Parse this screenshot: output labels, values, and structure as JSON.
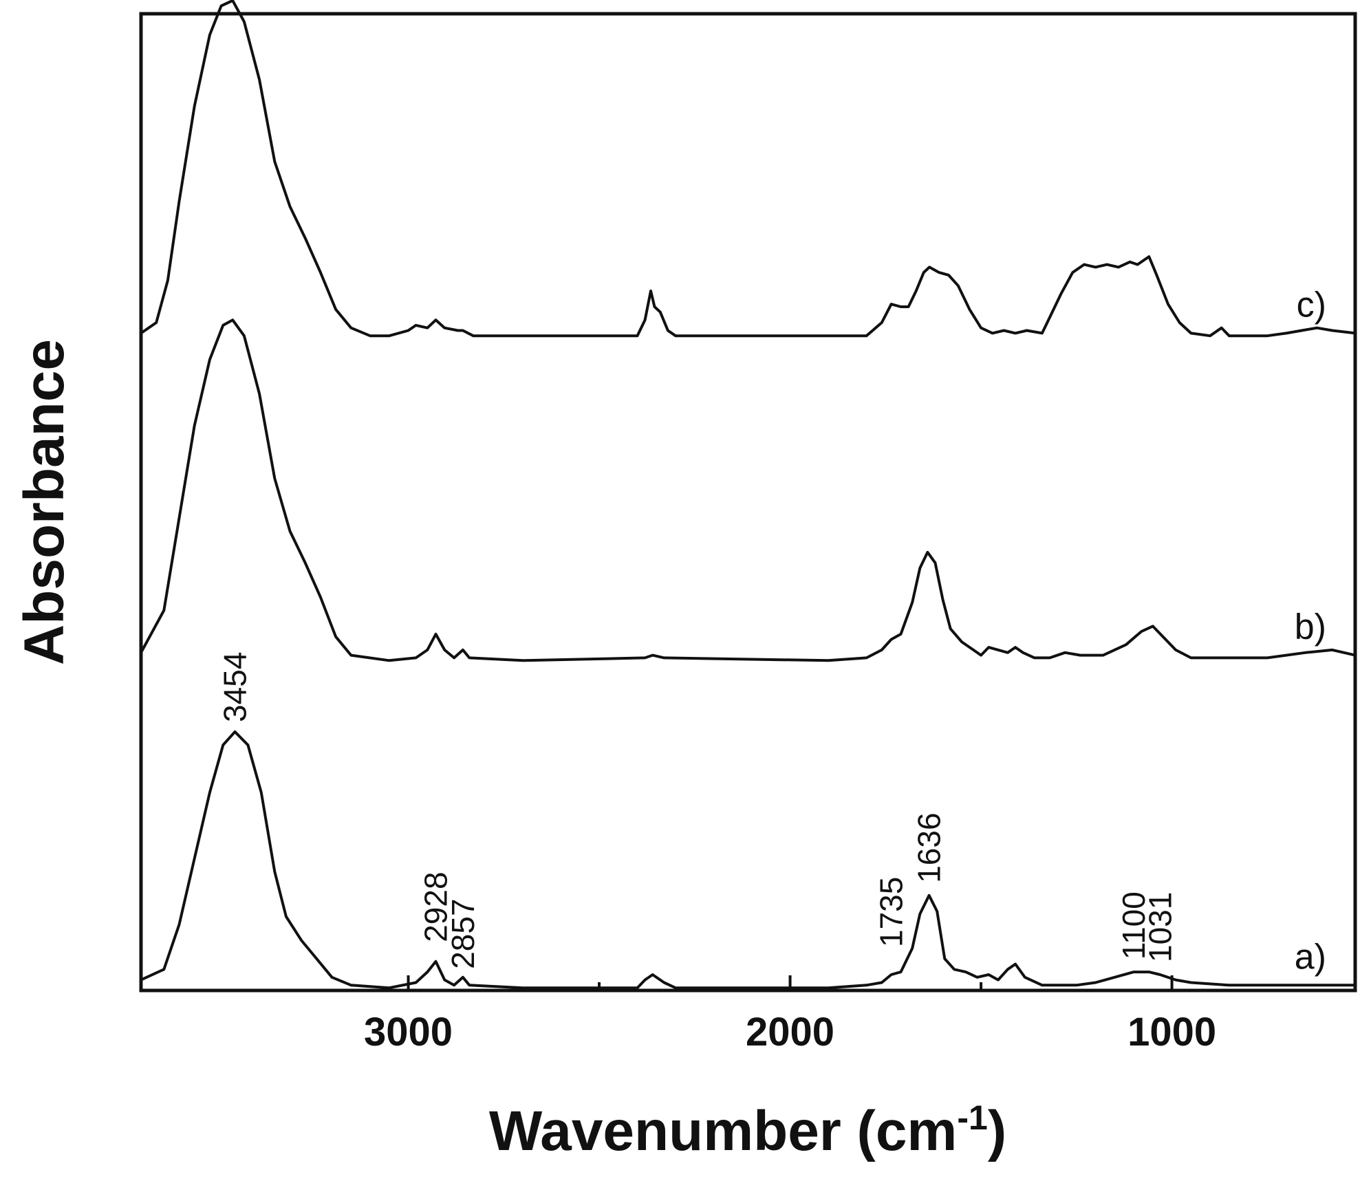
{
  "chart_data": {
    "type": "line",
    "title": "",
    "xlabel": "Wavenumber (cm",
    "xlabel_sup": "-1",
    "xlabel_end": ")",
    "ylabel": "Absorbance",
    "xlim": [
      3700,
      520
    ],
    "x_reversed": true,
    "ylim": [
      0,
      3.7
    ],
    "x_ticks": [
      3000,
      2000,
      1000
    ],
    "x_tick_labels": [
      "3000",
      "2000",
      "1000"
    ],
    "y_ticks_shown": false,
    "grid": false,
    "series": [
      {
        "name": "a)",
        "offset": 0.0,
        "points": [
          [
            3700,
            0.04
          ],
          [
            3640,
            0.08
          ],
          [
            3600,
            0.25
          ],
          [
            3560,
            0.5
          ],
          [
            3520,
            0.75
          ],
          [
            3485,
            0.93
          ],
          [
            3454,
            0.98
          ],
          [
            3420,
            0.93
          ],
          [
            3385,
            0.75
          ],
          [
            3350,
            0.45
          ],
          [
            3320,
            0.28
          ],
          [
            3280,
            0.19
          ],
          [
            3240,
            0.12
          ],
          [
            3200,
            0.05
          ],
          [
            3150,
            0.02
          ],
          [
            3050,
            0.01
          ],
          [
            2980,
            0.03
          ],
          [
            2950,
            0.07
          ],
          [
            2928,
            0.11
          ],
          [
            2905,
            0.04
          ],
          [
            2880,
            0.02
          ],
          [
            2857,
            0.05
          ],
          [
            2840,
            0.02
          ],
          [
            2700,
            0.01
          ],
          [
            2400,
            0.01
          ],
          [
            2380,
            0.04
          ],
          [
            2360,
            0.06
          ],
          [
            2330,
            0.03
          ],
          [
            2300,
            0.01
          ],
          [
            1900,
            0.01
          ],
          [
            1800,
            0.02
          ],
          [
            1760,
            0.03
          ],
          [
            1735,
            0.06
          ],
          [
            1710,
            0.07
          ],
          [
            1680,
            0.16
          ],
          [
            1660,
            0.29
          ],
          [
            1636,
            0.36
          ],
          [
            1615,
            0.3
          ],
          [
            1595,
            0.12
          ],
          [
            1570,
            0.08
          ],
          [
            1540,
            0.07
          ],
          [
            1510,
            0.05
          ],
          [
            1480,
            0.06
          ],
          [
            1455,
            0.04
          ],
          [
            1430,
            0.08
          ],
          [
            1410,
            0.1
          ],
          [
            1385,
            0.05
          ],
          [
            1340,
            0.02
          ],
          [
            1300,
            0.02
          ],
          [
            1250,
            0.02
          ],
          [
            1200,
            0.03
          ],
          [
            1150,
            0.05
          ],
          [
            1100,
            0.07
          ],
          [
            1060,
            0.07
          ],
          [
            1031,
            0.06
          ],
          [
            990,
            0.04
          ],
          [
            950,
            0.03
          ],
          [
            850,
            0.02
          ],
          [
            700,
            0.02
          ],
          [
            600,
            0.02
          ],
          [
            520,
            0.02
          ]
        ]
      },
      {
        "name": "b)",
        "offset": 1.24,
        "points": [
          [
            3700,
            0.04
          ],
          [
            3640,
            0.2
          ],
          [
            3600,
            0.55
          ],
          [
            3560,
            0.9
          ],
          [
            3520,
            1.15
          ],
          [
            3485,
            1.28
          ],
          [
            3460,
            1.3
          ],
          [
            3430,
            1.24
          ],
          [
            3390,
            1.02
          ],
          [
            3350,
            0.7
          ],
          [
            3310,
            0.5
          ],
          [
            3270,
            0.38
          ],
          [
            3230,
            0.25
          ],
          [
            3190,
            0.1
          ],
          [
            3150,
            0.03
          ],
          [
            3050,
            0.01
          ],
          [
            2980,
            0.02
          ],
          [
            2950,
            0.05
          ],
          [
            2928,
            0.11
          ],
          [
            2905,
            0.05
          ],
          [
            2880,
            0.02
          ],
          [
            2857,
            0.05
          ],
          [
            2840,
            0.02
          ],
          [
            2700,
            0.01
          ],
          [
            2380,
            0.02
          ],
          [
            2360,
            0.03
          ],
          [
            2330,
            0.02
          ],
          [
            1900,
            0.01
          ],
          [
            1800,
            0.02
          ],
          [
            1760,
            0.05
          ],
          [
            1735,
            0.09
          ],
          [
            1710,
            0.11
          ],
          [
            1680,
            0.23
          ],
          [
            1660,
            0.36
          ],
          [
            1640,
            0.42
          ],
          [
            1620,
            0.38
          ],
          [
            1600,
            0.24
          ],
          [
            1580,
            0.13
          ],
          [
            1550,
            0.08
          ],
          [
            1520,
            0.05
          ],
          [
            1500,
            0.03
          ],
          [
            1480,
            0.06
          ],
          [
            1455,
            0.05
          ],
          [
            1430,
            0.04
          ],
          [
            1410,
            0.06
          ],
          [
            1390,
            0.04
          ],
          [
            1360,
            0.02
          ],
          [
            1320,
            0.02
          ],
          [
            1280,
            0.04
          ],
          [
            1240,
            0.03
          ],
          [
            1180,
            0.03
          ],
          [
            1120,
            0.07
          ],
          [
            1080,
            0.12
          ],
          [
            1050,
            0.14
          ],
          [
            1030,
            0.11
          ],
          [
            990,
            0.05
          ],
          [
            950,
            0.02
          ],
          [
            850,
            0.02
          ],
          [
            750,
            0.02
          ],
          [
            650,
            0.04
          ],
          [
            580,
            0.05
          ],
          [
            520,
            0.03
          ]
        ]
      },
      {
        "name": "c)",
        "offset": 2.47,
        "points": [
          [
            3700,
            0.02
          ],
          [
            3660,
            0.06
          ],
          [
            3630,
            0.22
          ],
          [
            3600,
            0.52
          ],
          [
            3560,
            0.88
          ],
          [
            3520,
            1.15
          ],
          [
            3490,
            1.26
          ],
          [
            3460,
            1.28
          ],
          [
            3430,
            1.2
          ],
          [
            3390,
            0.98
          ],
          [
            3350,
            0.67
          ],
          [
            3310,
            0.5
          ],
          [
            3270,
            0.38
          ],
          [
            3230,
            0.25
          ],
          [
            3190,
            0.11
          ],
          [
            3150,
            0.04
          ],
          [
            3100,
            0.01
          ],
          [
            3050,
            0.01
          ],
          [
            3000,
            0.03
          ],
          [
            2980,
            0.05
          ],
          [
            2950,
            0.04
          ],
          [
            2928,
            0.07
          ],
          [
            2905,
            0.04
          ],
          [
            2870,
            0.03
          ],
          [
            2857,
            0.03
          ],
          [
            2830,
            0.01
          ],
          [
            2500,
            0.01
          ],
          [
            2400,
            0.01
          ],
          [
            2380,
            0.07
          ],
          [
            2365,
            0.18
          ],
          [
            2355,
            0.12
          ],
          [
            2340,
            0.1
          ],
          [
            2320,
            0.03
          ],
          [
            2300,
            0.01
          ],
          [
            1900,
            0.01
          ],
          [
            1800,
            0.01
          ],
          [
            1760,
            0.06
          ],
          [
            1735,
            0.13
          ],
          [
            1710,
            0.12
          ],
          [
            1690,
            0.12
          ],
          [
            1670,
            0.18
          ],
          [
            1650,
            0.25
          ],
          [
            1635,
            0.27
          ],
          [
            1610,
            0.25
          ],
          [
            1585,
            0.24
          ],
          [
            1560,
            0.2
          ],
          [
            1530,
            0.11
          ],
          [
            1500,
            0.04
          ],
          [
            1470,
            0.02
          ],
          [
            1440,
            0.03
          ],
          [
            1410,
            0.02
          ],
          [
            1380,
            0.03
          ],
          [
            1340,
            0.02
          ],
          [
            1320,
            0.08
          ],
          [
            1290,
            0.17
          ],
          [
            1260,
            0.25
          ],
          [
            1230,
            0.28
          ],
          [
            1200,
            0.27
          ],
          [
            1170,
            0.28
          ],
          [
            1140,
            0.27
          ],
          [
            1110,
            0.29
          ],
          [
            1090,
            0.28
          ],
          [
            1060,
            0.31
          ],
          [
            1040,
            0.24
          ],
          [
            1010,
            0.13
          ],
          [
            980,
            0.06
          ],
          [
            950,
            0.02
          ],
          [
            900,
            0.01
          ],
          [
            870,
            0.04
          ],
          [
            850,
            0.01
          ],
          [
            750,
            0.01
          ],
          [
            700,
            0.02
          ],
          [
            660,
            0.03
          ],
          [
            620,
            0.04
          ],
          [
            580,
            0.03
          ],
          [
            520,
            0.02
          ]
        ]
      }
    ],
    "peak_labels": [
      {
        "text": "3454",
        "series": 0,
        "x": 3454
      },
      {
        "text": "2928",
        "series": 0,
        "x": 2928
      },
      {
        "text": "2857",
        "series": 0,
        "x": 2857
      },
      {
        "text": "1735",
        "series": 0,
        "x": 1735
      },
      {
        "text": "1636",
        "series": 0,
        "x": 1636
      },
      {
        "text": "1100",
        "series": 0,
        "x": 1100
      },
      {
        "text": "1031",
        "series": 0,
        "x": 1031
      }
    ],
    "line_color": "#111111"
  }
}
